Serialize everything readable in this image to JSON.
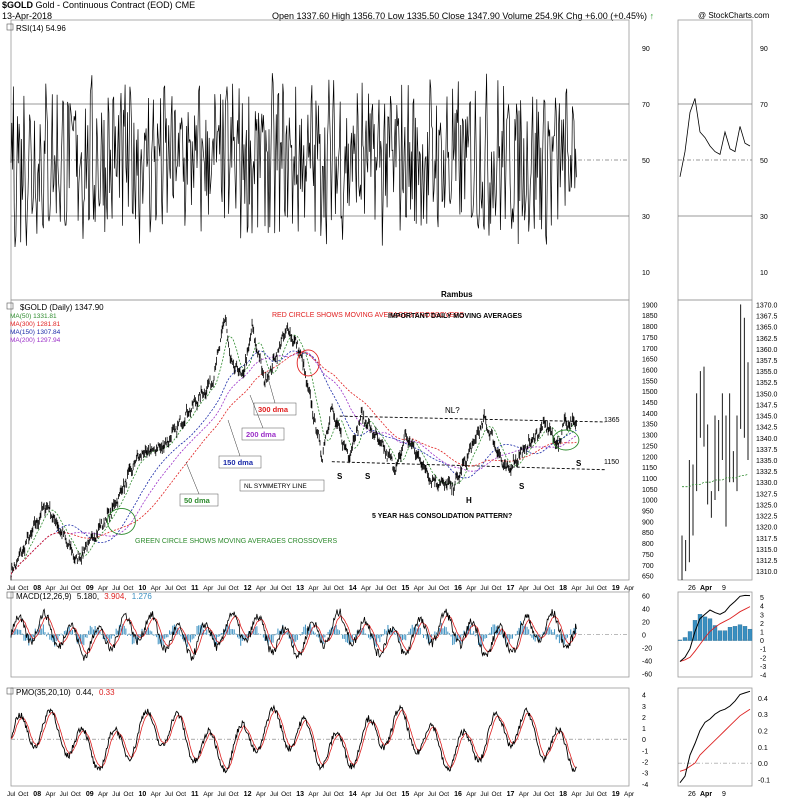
{
  "header": {
    "symbol": "$GOLD",
    "name": "Gold - Continuous Contract (EOD)",
    "exchange": "CME",
    "date": "13-Apr-2018",
    "open_label": "Open",
    "open": "1337.60",
    "high_label": "High",
    "high": "1356.70",
    "low_label": "Low",
    "low": "1335.50",
    "close_label": "Close",
    "close": "1347.90",
    "volume_label": "Volume",
    "volume": "254.9K",
    "chg_label": "Chg",
    "chg": "+6.00 (+0.45%)",
    "watermark": "@ StockCharts.com"
  },
  "colors": {
    "ma50": "#2e8b2e",
    "ma300": "#e02020",
    "ma150": "#1a2aa8",
    "ma200": "#9b30c8",
    "macd_hist": "#3a8fc0",
    "signal": "#dd2222",
    "price": "#000000"
  },
  "rsi_panel": {
    "label": "RSI(14) 54.96",
    "ticks": [
      "90",
      "70",
      "50",
      "30",
      "10"
    ],
    "tick_values": [
      90,
      70,
      50,
      30,
      10
    ],
    "watermark": "Rambus"
  },
  "price_panel": {
    "title": "$GOLD (Daily) 1347.90",
    "legend": [
      {
        "text": "MA(50) 1331.81",
        "color": "#2e8b2e"
      },
      {
        "text": "MA(300) 1281.81",
        "color": "#e02020"
      },
      {
        "text": "MA(150) 1307.84",
        "color": "#1a2aa8"
      },
      {
        "text": "MA(200) 1297.94",
        "color": "#9b30c8"
      }
    ],
    "ticks": [
      "1900",
      "1850",
      "1800",
      "1750",
      "1700",
      "1650",
      "1600",
      "1550",
      "1500",
      "1450",
      "1400",
      "1350",
      "1300",
      "1250",
      "1200",
      "1150",
      "1100",
      "1050",
      "1000",
      "950",
      "900",
      "850",
      "800",
      "750",
      "700",
      "650"
    ],
    "tick_values": [
      1900,
      1850,
      1800,
      1750,
      1700,
      1650,
      1600,
      1550,
      1500,
      1450,
      1400,
      1350,
      1300,
      1250,
      1200,
      1150,
      1100,
      1050,
      1000,
      950,
      900,
      850,
      800,
      750,
      700,
      650
    ],
    "annotations": {
      "red_circle": "RED CIRCLE SHOWS MOVING AVERAGES CROSSOVERS",
      "important": "IMPORTANT DAILY MOVING AVERAGES",
      "nl": "NL?",
      "level_1365": "1365",
      "level_1150": "1150",
      "dma300": "300 dma",
      "dma200": "200 dma",
      "dma150": "150 dma",
      "dma50": "50 dma",
      "nl_symmetry": "NL SYMMETRY LINE",
      "s1": "S",
      "s2": "S",
      "h": "H",
      "s3": "S",
      "s4": "S",
      "pattern": "5 YEAR H&S CONSOLIDATION PATTERN?",
      "green_circle": "GREEN CIRCLE SHOWS MOVING AVERAGES CROSSOVERS"
    }
  },
  "macd_panel": {
    "label_name": "MACD(12,26,9)",
    "macd": "5.180,",
    "signal": "3.904,",
    "hist": "1.276",
    "ticks": [
      "60",
      "40",
      "20",
      "0",
      "-20",
      "-40",
      "-60"
    ],
    "tick_values": [
      60,
      40,
      20,
      0,
      -20,
      -40,
      -60
    ]
  },
  "pmo_panel": {
    "label_name": "PMO(35,20,10)",
    "pmo": "0.44,",
    "signal": "0.33",
    "ticks": [
      "4",
      "3",
      "2",
      "1",
      "0",
      "-1",
      "-2",
      "-3",
      "-4"
    ],
    "tick_values": [
      4,
      3,
      2,
      1,
      0,
      -1,
      -2,
      -3,
      -4
    ]
  },
  "x_axis": {
    "years": [
      "08",
      "09",
      "10",
      "11",
      "12",
      "13",
      "14",
      "15",
      "16",
      "17",
      "18",
      "19"
    ]
  },
  "side_chart": {
    "rsi_ticks": [
      "90",
      "70",
      "50",
      "30",
      "10"
    ],
    "price_ticks": [
      "1370.0",
      "1367.5",
      "1365.0",
      "1362.5",
      "1360.0",
      "1357.5",
      "1355.0",
      "1352.5",
      "1350.0",
      "1347.5",
      "1345.0",
      "1342.5",
      "1340.0",
      "1337.5",
      "1335.0",
      "1332.5",
      "1330.0",
      "1327.5",
      "1325.0",
      "1322.5",
      "1320.0",
      "1317.5",
      "1315.0",
      "1312.5",
      "1310.0"
    ],
    "price_tick_values": [
      1370,
      1367.5,
      1365,
      1362.5,
      1360,
      1357.5,
      1355,
      1352.5,
      1350,
      1347.5,
      1345,
      1342.5,
      1340,
      1337.5,
      1335,
      1332.5,
      1330,
      1327.5,
      1325,
      1322.5,
      1320,
      1317.5,
      1315,
      1312.5,
      1310
    ],
    "macd_ticks": [
      "5",
      "4",
      "3",
      "2",
      "1",
      "0",
      "-1",
      "-2",
      "-3",
      "-4"
    ],
    "macd_tick_values": [
      5,
      4,
      3,
      2,
      1,
      0,
      -1,
      -2,
      -3,
      -4
    ],
    "pmo_ticks": [
      "0.4",
      "0.3",
      "0.2",
      "0.1",
      "0.0",
      "-0.1"
    ],
    "pmo_tick_values": [
      0.4,
      0.3,
      0.2,
      0.1,
      0.0,
      -0.1
    ],
    "x_labels": [
      "26",
      "Apr",
      "9"
    ]
  },
  "chart_data": {
    "type": "line",
    "title": "$GOLD (Daily) 1347.90",
    "x_range": [
      "2007-07",
      "2019-04"
    ],
    "price_ylim": [
      630,
      1920
    ],
    "price_series": {
      "name": "$GOLD",
      "x": [
        "2007-07",
        "2008-03",
        "2008-10",
        "2009-06",
        "2009-12",
        "2010-06",
        "2010-12",
        "2011-05",
        "2011-08",
        "2011-09",
        "2011-12",
        "2012-02",
        "2012-05",
        "2012-10",
        "2013-01",
        "2013-06",
        "2013-08",
        "2013-12",
        "2014-03",
        "2014-11",
        "2015-01",
        "2015-07",
        "2015-12",
        "2016-07",
        "2016-12",
        "2017-09",
        "2017-12",
        "2018-01",
        "2018-04"
      ],
      "values": [
        660,
        980,
        720,
        950,
        1200,
        1250,
        1420,
        1550,
        1850,
        1630,
        1570,
        1790,
        1540,
        1790,
        1680,
        1200,
        1420,
        1200,
        1390,
        1140,
        1300,
        1090,
        1060,
        1370,
        1130,
        1350,
        1240,
        1360,
        1348
      ]
    },
    "ma_series": [
      {
        "name": "MA(50) 1331.81",
        "last": 1331.81
      },
      {
        "name": "MA(300) 1281.81",
        "last": 1281.81
      },
      {
        "name": "MA(150) 1307.84",
        "last": 1307.84
      },
      {
        "name": "MA(200) 1297.94",
        "last": 1297.94
      }
    ],
    "neckline": [
      1365,
      1150
    ],
    "rsi_ylim": [
      0,
      100
    ],
    "rsi_last": 54.96,
    "macd_ylim": [
      -65,
      65
    ],
    "macd_last": {
      "macd": 5.18,
      "signal": 3.904,
      "hist": 1.276
    },
    "pmo_ylim": [
      -4.2,
      4.6
    ],
    "pmo_last": {
      "pmo": 0.44,
      "signal": 0.33
    },
    "side_price": {
      "x": [
        "2018-03-19",
        "2018-03-20",
        "2018-03-21",
        "2018-03-22",
        "2018-03-23",
        "2018-03-26",
        "2018-03-27",
        "2018-03-28",
        "2018-03-29",
        "2018-04-02",
        "2018-04-03",
        "2018-04-04",
        "2018-04-05",
        "2018-04-06",
        "2018-04-09",
        "2018-04-10",
        "2018-04-11",
        "2018-04-12",
        "2018-04-13"
      ],
      "high": [
        1318,
        1317,
        1335,
        1334,
        1350,
        1355,
        1356,
        1343,
        1328,
        1345,
        1344,
        1350,
        1345,
        1350,
        1337,
        1345,
        1370,
        1367,
        1357
      ],
      "low": [
        1308,
        1310,
        1312,
        1318,
        1328,
        1340,
        1338,
        1325,
        1322,
        1326,
        1328,
        1335,
        1320,
        1330,
        1330,
        1328,
        1342,
        1340,
        1335
      ],
      "ma50": [
        1329,
        1329,
        1329,
        1329.5,
        1329.5,
        1329.5,
        1330,
        1330,
        1330,
        1330.5,
        1330.5,
        1330.5,
        1331,
        1331,
        1331,
        1331,
        1331.5,
        1331.5,
        1331.81
      ]
    },
    "side_rsi": [
      44,
      53,
      67,
      72,
      60,
      58,
      55,
      53,
      52,
      60,
      54,
      53,
      62,
      56,
      55
    ],
    "side_macd": {
      "macd": [
        -2.5,
        -2.0,
        -1.0,
        1.0,
        2.5,
        3.0,
        3.5,
        3.2,
        3.0,
        3.3,
        4.0,
        4.5,
        5.1,
        5.2,
        5.18
      ],
      "signal": [
        -2.5,
        -2.3,
        -2.0,
        -1.3,
        -0.5,
        0.3,
        1.0,
        1.5,
        1.9,
        2.2,
        2.5,
        2.9,
        3.3,
        3.6,
        3.904
      ]
    },
    "side_pmo": {
      "pmo": [
        -0.12,
        -0.08,
        0.05,
        0.12,
        0.2,
        0.25,
        0.27,
        0.3,
        0.32,
        0.33,
        0.35,
        0.38,
        0.42,
        0.43,
        0.44
      ],
      "signal": [
        -0.05,
        -0.04,
        -0.02,
        0.0,
        0.05,
        0.08,
        0.11,
        0.14,
        0.17,
        0.2,
        0.23,
        0.26,
        0.29,
        0.31,
        0.33
      ]
    }
  }
}
